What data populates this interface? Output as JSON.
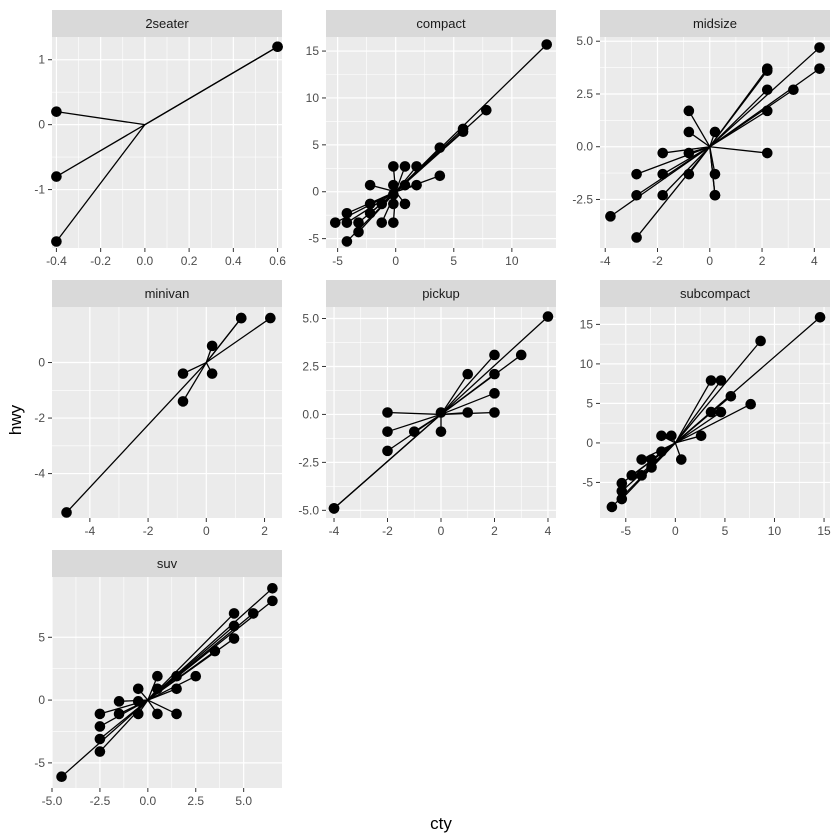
{
  "xlabel": "cty",
  "ylabel": "hwy",
  "chart_data": [
    {
      "type": "scatter",
      "panel": "2seater",
      "xlim": [
        -0.42,
        0.62
      ],
      "ylim": [
        -1.9,
        1.35
      ],
      "xticks": [
        -0.4,
        -0.2,
        0.0,
        0.2,
        0.4,
        0.6
      ],
      "xtick_labels": [
        "-0.4",
        "-0.2",
        "0.0",
        "0.2",
        "0.4",
        "0.6"
      ],
      "yticks": [
        -1,
        0,
        1
      ],
      "ytick_labels": [
        "-1",
        "0",
        "1"
      ],
      "points": [
        [
          0.6,
          1.2
        ],
        [
          0.6,
          1.2
        ],
        [
          -0.4,
          0.2
        ],
        [
          -0.4,
          -0.8
        ],
        [
          -0.4,
          -1.8
        ]
      ]
    },
    {
      "type": "scatter",
      "panel": "compact",
      "xlim": [
        -6,
        13.8
      ],
      "ylim": [
        -6,
        16.5
      ],
      "xticks": [
        -5,
        0,
        5,
        10
      ],
      "xtick_labels": [
        "-5",
        "0",
        "5",
        "10"
      ],
      "yticks": [
        -5,
        0,
        5,
        10,
        15
      ],
      "ytick_labels": [
        "-5",
        "0",
        "5",
        "10",
        "15"
      ],
      "points": [
        [
          13,
          15.7
        ],
        [
          7.8,
          8.7
        ],
        [
          5.8,
          6.7
        ],
        [
          5.8,
          6.4
        ],
        [
          3.8,
          4.7
        ],
        [
          3.8,
          1.7
        ],
        [
          1.8,
          0.7
        ],
        [
          0.8,
          2.7
        ],
        [
          1.8,
          2.7
        ],
        [
          0.8,
          0.7
        ],
        [
          -0.2,
          2.7
        ],
        [
          -0.2,
          0.7
        ],
        [
          -0.2,
          -0.3
        ],
        [
          0.8,
          -1.3
        ],
        [
          -0.2,
          -1.3
        ],
        [
          -1.2,
          -1.3
        ],
        [
          -1.2,
          -3.3
        ],
        [
          -0.2,
          -3.3
        ],
        [
          -2.2,
          0.7
        ],
        [
          -2.2,
          -1.3
        ],
        [
          -2.2,
          -2.3
        ],
        [
          -3.2,
          -3.3
        ],
        [
          -3.2,
          -4.3
        ],
        [
          -4.2,
          -3.3
        ],
        [
          -4.2,
          -2.3
        ],
        [
          -4.2,
          -5.3
        ],
        [
          -5.2,
          -3.3
        ]
      ]
    },
    {
      "type": "scatter",
      "panel": "midsize",
      "xlim": [
        -4.2,
        4.6
      ],
      "ylim": [
        -4.8,
        5.2
      ],
      "xticks": [
        -4,
        -2,
        0,
        2,
        4
      ],
      "xtick_labels": [
        "-4",
        "-2",
        "0",
        "2",
        "4"
      ],
      "yticks": [
        -2.5,
        0,
        2.5,
        5
      ],
      "ytick_labels": [
        "-2.5",
        "0.0",
        "2.5",
        "5.0"
      ],
      "points": [
        [
          4.2,
          4.7
        ],
        [
          4.2,
          3.7
        ],
        [
          3.2,
          2.7
        ],
        [
          2.2,
          3.7
        ],
        [
          2.2,
          3.6
        ],
        [
          2.2,
          2.7
        ],
        [
          2.2,
          1.7
        ],
        [
          2.2,
          -0.3
        ],
        [
          0.2,
          0.7
        ],
        [
          0.2,
          -1.3
        ],
        [
          0.2,
          -2.3
        ],
        [
          0.2,
          -2.3
        ],
        [
          -0.8,
          1.7
        ],
        [
          -0.8,
          0.7
        ],
        [
          -0.8,
          -0.3
        ],
        [
          -0.8,
          -1.3
        ],
        [
          -1.8,
          -0.3
        ],
        [
          -1.8,
          -1.3
        ],
        [
          -1.8,
          -2.3
        ],
        [
          -2.8,
          -1.3
        ],
        [
          -2.8,
          -2.3
        ],
        [
          -2.8,
          -4.3
        ],
        [
          -3.8,
          -3.3
        ]
      ]
    },
    {
      "type": "scatter",
      "panel": "minivan",
      "xlim": [
        -5.3,
        2.6
      ],
      "ylim": [
        -5.6,
        2.0
      ],
      "xticks": [
        -4,
        -2,
        0,
        2
      ],
      "xtick_labels": [
        "-4",
        "-2",
        "0",
        "2"
      ],
      "yticks": [
        -4,
        -2,
        0
      ],
      "ytick_labels": [
        "-4",
        "-2",
        "0"
      ],
      "points": [
        [
          2.2,
          1.6
        ],
        [
          1.2,
          1.6
        ],
        [
          1.2,
          1.6
        ],
        [
          0.2,
          0.6
        ],
        [
          0.2,
          -0.4
        ],
        [
          -0.8,
          -0.4
        ],
        [
          -0.8,
          -1.4
        ],
        [
          -4.8,
          -5.4
        ]
      ]
    },
    {
      "type": "scatter",
      "panel": "pickup",
      "xlim": [
        -4.3,
        4.3
      ],
      "ylim": [
        -5.4,
        5.6
      ],
      "xticks": [
        -4,
        -2,
        0,
        2,
        4
      ],
      "xtick_labels": [
        "-4",
        "-2",
        "0",
        "2",
        "4"
      ],
      "yticks": [
        -5,
        -2.5,
        0,
        2.5,
        5
      ],
      "ytick_labels": [
        "-5.0",
        "-2.5",
        "0.0",
        "2.5",
        "5.0"
      ],
      "points": [
        [
          4.0,
          5.1
        ],
        [
          3.0,
          3.1
        ],
        [
          2.0,
          3.1
        ],
        [
          2.0,
          2.1
        ],
        [
          1.0,
          2.1
        ],
        [
          2.0,
          1.1
        ],
        [
          2.0,
          0.1
        ],
        [
          1.0,
          0.1
        ],
        [
          0.0,
          0.1
        ],
        [
          0.0,
          -0.9
        ],
        [
          -1.0,
          -0.9
        ],
        [
          -2.0,
          0.1
        ],
        [
          -2.0,
          -0.9
        ],
        [
          -2.0,
          -1.9
        ],
        [
          -4.0,
          -4.9
        ],
        [
          -4.0,
          -4.9
        ]
      ]
    },
    {
      "type": "scatter",
      "panel": "subcompact",
      "xlim": [
        -7.6,
        15.6
      ],
      "ylim": [
        -9.5,
        17.2
      ],
      "xticks": [
        -5,
        0,
        5,
        10,
        15
      ],
      "xtick_labels": [
        "-5",
        "0",
        "5",
        "10",
        "15"
      ],
      "yticks": [
        -5,
        0,
        5,
        10,
        15
      ],
      "ytick_labels": [
        "-5",
        "0",
        "5",
        "10",
        "15"
      ],
      "points": [
        [
          14.6,
          15.9
        ],
        [
          8.6,
          12.9
        ],
        [
          7.6,
          4.9
        ],
        [
          5.6,
          5.9
        ],
        [
          4.6,
          7.9
        ],
        [
          3.6,
          7.9
        ],
        [
          4.6,
          3.9
        ],
        [
          3.6,
          3.9
        ],
        [
          2.6,
          0.9
        ],
        [
          0.6,
          -2.1
        ],
        [
          -0.4,
          0.9
        ],
        [
          -1.4,
          0.9
        ],
        [
          -1.4,
          -1.1
        ],
        [
          -2.4,
          -2.1
        ],
        [
          -2.4,
          -3.1
        ],
        [
          -3.4,
          -2.1
        ],
        [
          -3.4,
          -4.1
        ],
        [
          -4.4,
          -4.1
        ],
        [
          -5.4,
          -5.1
        ],
        [
          -5.4,
          -6.1
        ],
        [
          -5.4,
          -7.1
        ],
        [
          -6.4,
          -8.1
        ]
      ]
    },
    {
      "type": "scatter",
      "panel": "suv",
      "xlim": [
        -5.0,
        7.0
      ],
      "ylim": [
        -7.0,
        9.8
      ],
      "xticks": [
        -5,
        -2.5,
        0,
        2.5,
        5
      ],
      "xtick_labels": [
        "-5.0",
        "-2.5",
        "0.0",
        "2.5",
        "5.0"
      ],
      "yticks": [
        -5,
        0,
        5
      ],
      "ytick_labels": [
        "-5",
        "0",
        "5"
      ],
      "points": [
        [
          6.5,
          8.9
        ],
        [
          6.5,
          7.9
        ],
        [
          5.5,
          6.9
        ],
        [
          4.5,
          6.9
        ],
        [
          4.5,
          5.9
        ],
        [
          4.5,
          4.9
        ],
        [
          3.5,
          3.9
        ],
        [
          2.5,
          1.9
        ],
        [
          1.5,
          1.9
        ],
        [
          1.5,
          0.9
        ],
        [
          1.5,
          -1.1
        ],
        [
          0.5,
          1.9
        ],
        [
          0.5,
          0.9
        ],
        [
          0.5,
          -1.1
        ],
        [
          -0.5,
          0.9
        ],
        [
          -0.5,
          -0.1
        ],
        [
          -0.5,
          -1.1
        ],
        [
          -1.5,
          -0.1
        ],
        [
          -1.5,
          -1.1
        ],
        [
          -2.5,
          -1.1
        ],
        [
          -2.5,
          -2.1
        ],
        [
          -2.5,
          -3.1
        ],
        [
          -2.5,
          -4.1
        ],
        [
          -4.5,
          -6.1
        ]
      ]
    }
  ]
}
